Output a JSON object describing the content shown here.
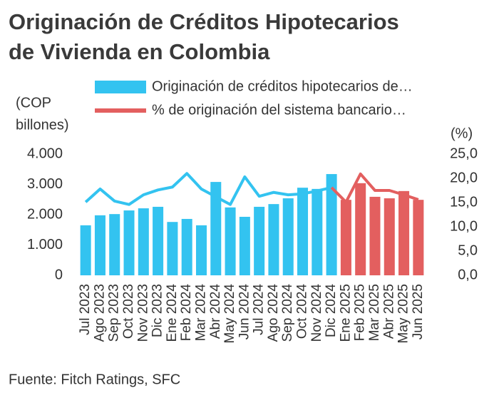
{
  "chart_data": {
    "type": "bar_line",
    "title": [
      "Originación de Créditos Hipotecarios",
      "de Vivienda en Colombia"
    ],
    "ylabel": [
      "(COP",
      "billones)"
    ],
    "y2label": "(%)",
    "source": "Fuente: Fitch Ratings, SFC",
    "categories": [
      "Jul 2023",
      "Ago 2023",
      "Sep 2023",
      "Oct 2023",
      "Nov 2023",
      "Dic 2023",
      "Ene 2024",
      "Feb 2024",
      "Mar 2024",
      "Abr 2024",
      "May 2024",
      "Jun 2024",
      "Jul 2024",
      "Ago 2024",
      "Sep 2024",
      "Oct 2024",
      "Nov 2024",
      "Dic 2024",
      "Ene 2025",
      "Feb 2025",
      "Mar 2025",
      "Abr 2025",
      "May 2025",
      "Jun 2025"
    ],
    "series": [
      {
        "name": "Originación de créditos hipotecarios de…",
        "kind": "bar",
        "color": "#33c3f0",
        "point_colors": [
          "#33c3f0",
          "#33c3f0",
          "#33c3f0",
          "#33c3f0",
          "#33c3f0",
          "#33c3f0",
          "#33c3f0",
          "#33c3f0",
          "#33c3f0",
          "#33c3f0",
          "#33c3f0",
          "#33c3f0",
          "#33c3f0",
          "#33c3f0",
          "#33c3f0",
          "#33c3f0",
          "#33c3f0",
          "#33c3f0",
          "#e35f5f",
          "#e35f5f",
          "#e35f5f",
          "#e35f5f",
          "#e35f5f",
          "#e35f5f"
        ],
        "values": [
          1650,
          1980,
          2020,
          2140,
          2210,
          2260,
          1760,
          1860,
          1650,
          3080,
          2240,
          1930,
          2260,
          2350,
          2540,
          2890,
          2850,
          3340,
          2490,
          3040,
          2590,
          2540,
          2780,
          2490
        ]
      },
      {
        "name": "% de originación del sistema bancario…",
        "kind": "line",
        "axis": "y2",
        "color": "#e35f5f",
        "point_colors": [
          "#33c3f0",
          "#33c3f0",
          "#33c3f0",
          "#33c3f0",
          "#33c3f0",
          "#33c3f0",
          "#33c3f0",
          "#33c3f0",
          "#33c3f0",
          "#33c3f0",
          "#33c3f0",
          "#33c3f0",
          "#33c3f0",
          "#33c3f0",
          "#33c3f0",
          "#33c3f0",
          "#33c3f0",
          "#e35f5f",
          "#e35f5f",
          "#e35f5f",
          "#e35f5f",
          "#e35f5f",
          "#e35f5f",
          "#e35f5f"
        ],
        "values": [
          15.1,
          17.8,
          15.3,
          14.6,
          16.6,
          17.6,
          18.2,
          21.0,
          17.8,
          16.2,
          14.6,
          20.3,
          16.3,
          17.1,
          16.6,
          16.8,
          17.4,
          18.1,
          15.1,
          20.9,
          17.5,
          17.5,
          16.6,
          15.6
        ]
      }
    ],
    "ylim": [
      0,
      4000
    ],
    "yticks": [
      0,
      {
        "value": 1000,
        "label": "1.000"
      },
      {
        "value": 2000,
        "label": "2.000"
      },
      {
        "value": 3000,
        "label": "3.000"
      },
      {
        "value": 4000,
        "label": "4.000"
      }
    ],
    "y2lim": [
      0,
      25
    ],
    "y2ticks": [
      {
        "value": 0,
        "label": "0,0"
      },
      {
        "value": 5,
        "label": "5,0"
      },
      {
        "value": 10,
        "label": "10,0"
      },
      {
        "value": 15,
        "label": "15,0"
      },
      {
        "value": 20,
        "label": "20,0"
      },
      {
        "value": 25,
        "label": "25,0"
      }
    ]
  }
}
